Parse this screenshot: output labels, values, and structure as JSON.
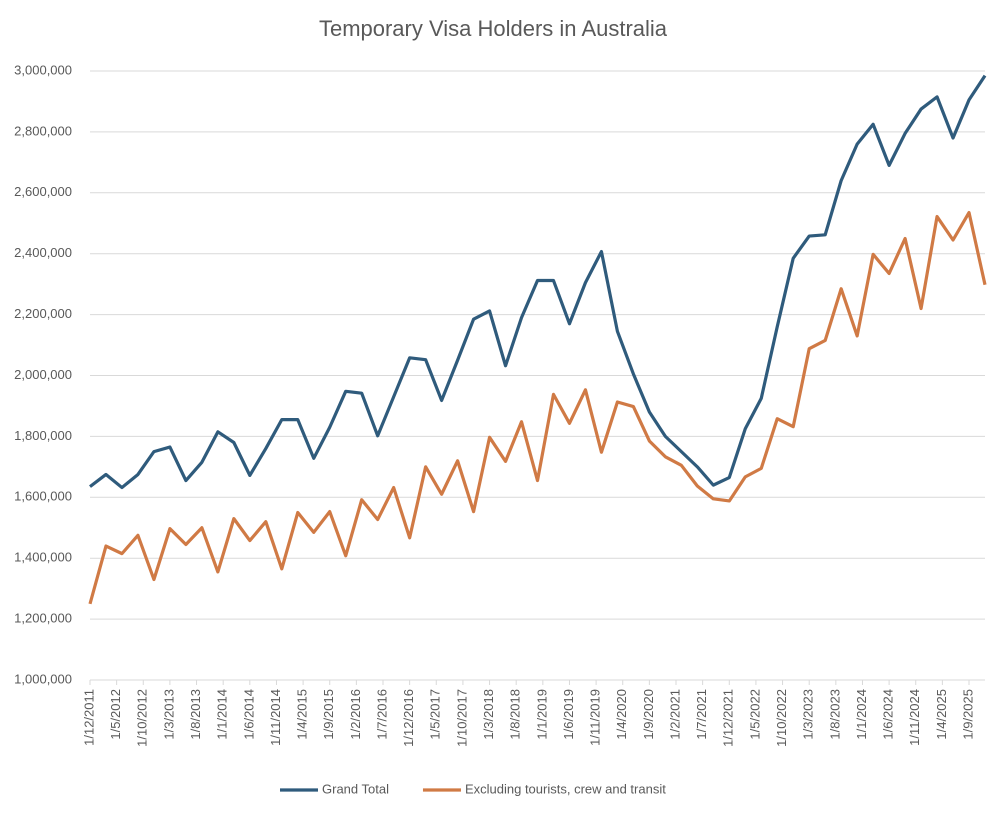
{
  "chart_data": {
    "type": "line",
    "title": "Temporary Visa Holders in Australia",
    "x": [
      "1/12/2011",
      "1/3/2012",
      "1/6/2012",
      "1/9/2012",
      "1/12/2012",
      "1/3/2013",
      "1/6/2013",
      "1/9/2013",
      "1/12/2013",
      "1/3/2014",
      "1/6/2014",
      "1/9/2014",
      "1/12/2014",
      "1/3/2015",
      "1/6/2015",
      "1/9/2015",
      "1/12/2015",
      "1/3/2016",
      "1/6/2016",
      "1/9/2016",
      "1/12/2016",
      "1/3/2017",
      "1/6/2017",
      "1/9/2017",
      "1/12/2017",
      "1/3/2018",
      "1/6/2018",
      "1/9/2018",
      "1/12/2018",
      "1/3/2019",
      "1/6/2019",
      "1/9/2019",
      "1/12/2019",
      "1/3/2020",
      "1/6/2020",
      "1/9/2020",
      "1/12/2020",
      "1/3/2021",
      "1/6/2021",
      "1/9/2021",
      "1/12/2021",
      "1/3/2022",
      "1/6/2022",
      "1/9/2022",
      "1/12/2022",
      "1/3/2023",
      "1/6/2023",
      "1/9/2023",
      "1/12/2023",
      "1/3/2024",
      "1/6/2024",
      "1/9/2024",
      "1/12/2024",
      "1/3/2025",
      "1/6/2025",
      "1/9/2025",
      "1/12/2025"
    ],
    "series": [
      {
        "name": "Grand Total",
        "color": "#2f5b7c",
        "values": [
          1635000,
          1675000,
          1632000,
          1675000,
          1750000,
          1765000,
          1655000,
          1715000,
          1815000,
          1780000,
          1672000,
          1760000,
          1855000,
          1855000,
          1728000,
          1830000,
          1948000,
          1942000,
          1802000,
          1930000,
          2058000,
          2052000,
          1918000,
          2050000,
          2185000,
          2212000,
          2032000,
          2190000,
          2312000,
          2312000,
          2170000,
          2305000,
          2407000,
          2145000,
          2005000,
          1880000,
          1800000,
          1750000,
          1700000,
          1640000,
          1665000,
          1825000,
          1925000,
          2160000,
          2385000,
          2458000,
          2462000,
          2640000,
          2760000,
          2825000,
          2690000,
          2795000,
          2875000,
          2915000,
          2780000,
          2905000,
          2985000
        ]
      },
      {
        "name": "Excluding tourists, crew and transit",
        "color": "#d07a45",
        "values": [
          1250000,
          1440000,
          1415000,
          1475000,
          1330000,
          1497000,
          1445000,
          1500000,
          1355000,
          1530000,
          1458000,
          1520000,
          1365000,
          1550000,
          1485000,
          1553000,
          1408000,
          1592000,
          1527000,
          1632000,
          1467000,
          1700000,
          1610000,
          1720000,
          1553000,
          1797000,
          1718000,
          1848000,
          1655000,
          1938000,
          1843000,
          1953000,
          1748000,
          1913000,
          1898000,
          1785000,
          1733000,
          1705000,
          1637000,
          1595000,
          1588000,
          1667000,
          1695000,
          1858000,
          1832000,
          2088000,
          2115000,
          2285000,
          2130000,
          2398000,
          2335000,
          2450000,
          2220000,
          2522000,
          2445000,
          2535000,
          2298000
        ]
      }
    ],
    "xlim": [
      "1/12/2011",
      "1/12/2025"
    ],
    "xticks": [
      "1/12/2011",
      "1/5/2012",
      "1/10/2012",
      "1/3/2013",
      "1/8/2013",
      "1/1/2014",
      "1/6/2014",
      "1/11/2014",
      "1/4/2015",
      "1/9/2015",
      "1/2/2016",
      "1/7/2016",
      "1/12/2016",
      "1/5/2017",
      "1/10/2017",
      "1/3/2018",
      "1/8/2018",
      "1/1/2019",
      "1/6/2019",
      "1/11/2019",
      "1/4/2020",
      "1/9/2020",
      "1/2/2021",
      "1/7/2021",
      "1/12/2021",
      "1/5/2022",
      "1/10/2022",
      "1/3/2023",
      "1/8/2023",
      "1/1/2024",
      "1/6/2024",
      "1/11/2024",
      "1/4/2025",
      "1/9/2025"
    ],
    "ylim": [
      1000000,
      3000000
    ],
    "yticks": [
      {
        "value": 1000000,
        "label": "1,000,000"
      },
      {
        "value": 1200000,
        "label": "1,200,000"
      },
      {
        "value": 1400000,
        "label": "1,400,000"
      },
      {
        "value": 1600000,
        "label": "1,600,000"
      },
      {
        "value": 1800000,
        "label": "1,800,000"
      },
      {
        "value": 2000000,
        "label": "2,000,000"
      },
      {
        "value": 2200000,
        "label": "2,200,000"
      },
      {
        "value": 2400000,
        "label": "2,400,000"
      },
      {
        "value": 2600000,
        "label": "2,600,000"
      },
      {
        "value": 2800000,
        "label": "2,800,000"
      },
      {
        "value": 3000000,
        "label": "3,000,000"
      }
    ],
    "grid": true,
    "legend": "bottom"
  }
}
